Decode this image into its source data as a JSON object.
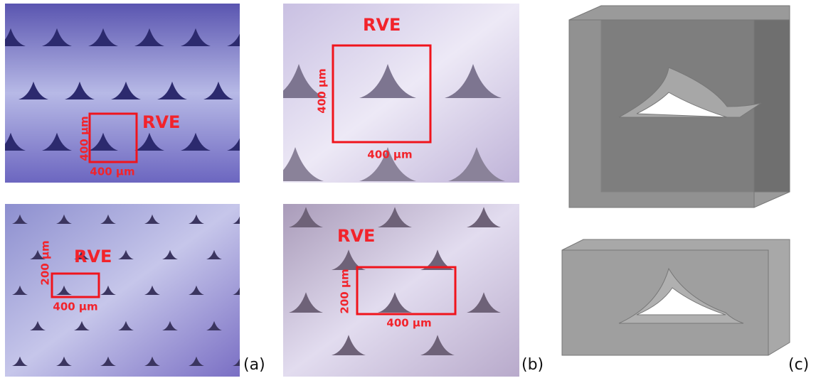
{
  "panels": [
    {
      "label": "(a)",
      "images": [
        {
          "rve": "RVE",
          "height": "400 µm",
          "width": "400 µm"
        },
        {
          "rve": "RVE",
          "height": "200 µm",
          "width": "400 µm"
        }
      ]
    },
    {
      "label": "(b)",
      "images": [
        {
          "rve": "RVE",
          "height": "400 µm",
          "width": "400 µm"
        },
        {
          "rve": "RVE",
          "height": "200 µm",
          "width": "400 µm"
        }
      ]
    },
    {
      "label": "(c)"
    }
  ]
}
